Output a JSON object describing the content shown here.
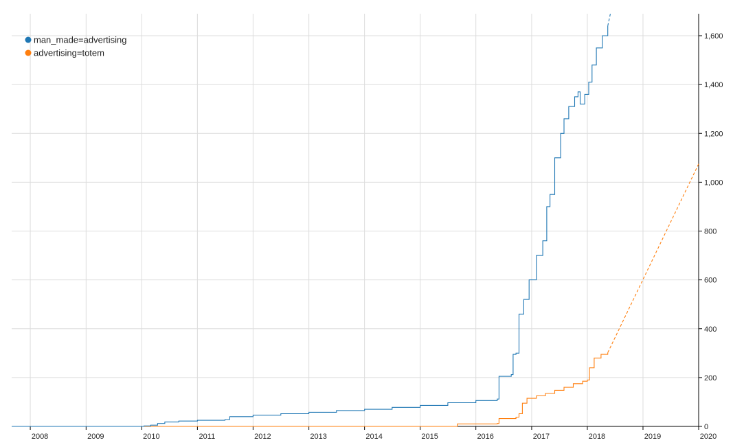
{
  "chart_data": {
    "type": "line",
    "title": "",
    "xlabel": "",
    "ylabel": "",
    "x_ticks": [
      "2008",
      "2009",
      "2010",
      "2011",
      "2012",
      "2013",
      "2014",
      "2015",
      "2016",
      "2017",
      "2018",
      "2019",
      "2020"
    ],
    "y_ticks": [
      "0",
      "200",
      "400",
      "600",
      "800",
      "1,000",
      "1,200",
      "1,400",
      "1,600"
    ],
    "xlim": [
      "2007-09-01",
      "2020-01-01"
    ],
    "ylim": [
      0,
      1690
    ],
    "grid": true,
    "y_axis_side": "right",
    "legend_position": "top-left",
    "series": [
      {
        "name": "man_made=advertising",
        "color": "#1f77b4",
        "points": [
          [
            "2007-09-01",
            0
          ],
          [
            "2009-12-20",
            0
          ],
          [
            "2010-01-15",
            2
          ],
          [
            "2010-03-01",
            5
          ],
          [
            "2010-04-15",
            12
          ],
          [
            "2010-06-01",
            18
          ],
          [
            "2010-09-01",
            22
          ],
          [
            "2011-01-01",
            25
          ],
          [
            "2011-07-01",
            28
          ],
          [
            "2011-08-01",
            40
          ],
          [
            "2012-01-01",
            46
          ],
          [
            "2012-07-01",
            52
          ],
          [
            "2013-01-01",
            58
          ],
          [
            "2013-07-01",
            65
          ],
          [
            "2014-01-01",
            70
          ],
          [
            "2014-07-01",
            78
          ],
          [
            "2015-01-01",
            86
          ],
          [
            "2015-07-01",
            97
          ],
          [
            "2016-01-01",
            106
          ],
          [
            "2016-05-20",
            112
          ],
          [
            "2016-06-01",
            205
          ],
          [
            "2016-08-20",
            212
          ],
          [
            "2016-09-01",
            295
          ],
          [
            "2016-09-20",
            300
          ],
          [
            "2016-10-10",
            460
          ],
          [
            "2016-11-10",
            520
          ],
          [
            "2016-12-15",
            600
          ],
          [
            "2017-02-01",
            700
          ],
          [
            "2017-03-15",
            760
          ],
          [
            "2017-04-10",
            900
          ],
          [
            "2017-05-01",
            950
          ],
          [
            "2017-06-01",
            1100
          ],
          [
            "2017-07-10",
            1200
          ],
          [
            "2017-08-01",
            1260
          ],
          [
            "2017-09-01",
            1310
          ],
          [
            "2017-10-10",
            1350
          ],
          [
            "2017-11-01",
            1370
          ],
          [
            "2017-11-15",
            1320
          ],
          [
            "2017-12-15",
            1360
          ],
          [
            "2018-01-10",
            1410
          ],
          [
            "2018-02-01",
            1480
          ],
          [
            "2018-03-01",
            1550
          ],
          [
            "2018-04-10",
            1600
          ],
          [
            "2018-05-15",
            1640
          ]
        ],
        "projection": [
          [
            "2018-05-15",
            1640
          ],
          [
            "2018-06-01",
            1690
          ]
        ]
      },
      {
        "name": "advertising=totem",
        "color": "#ff7f0e",
        "points": [
          [
            "2007-09-01",
            0
          ],
          [
            "2015-08-20",
            0
          ],
          [
            "2015-09-01",
            10
          ],
          [
            "2016-05-20",
            12
          ],
          [
            "2016-06-01",
            32
          ],
          [
            "2016-09-20",
            38
          ],
          [
            "2016-10-10",
            52
          ],
          [
            "2016-11-01",
            95
          ],
          [
            "2016-12-01",
            115
          ],
          [
            "2017-02-01",
            125
          ],
          [
            "2017-04-01",
            135
          ],
          [
            "2017-06-01",
            148
          ],
          [
            "2017-08-01",
            160
          ],
          [
            "2017-10-01",
            175
          ],
          [
            "2017-12-01",
            185
          ],
          [
            "2018-01-01",
            190
          ],
          [
            "2018-01-15",
            240
          ],
          [
            "2018-02-15",
            280
          ],
          [
            "2018-04-01",
            295
          ],
          [
            "2018-05-15",
            302
          ]
        ],
        "projection": [
          [
            "2018-05-15",
            302
          ],
          [
            "2020-01-01",
            1075
          ]
        ]
      }
    ]
  }
}
